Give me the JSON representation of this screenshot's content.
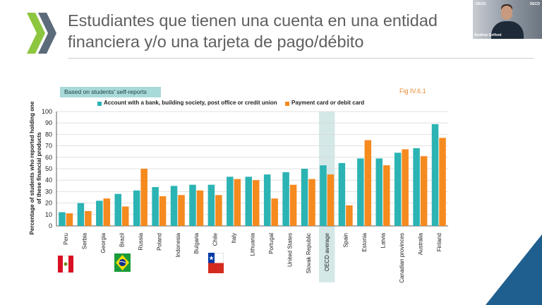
{
  "slide": {
    "title": "Estudiantes que tienen una cuenta en una entidad financiera y/o una tarjeta de pago/débito",
    "badge": "Based on students' self-reports",
    "figure_ref": "Fig IV.6.1",
    "presenter_name": "Andrea Grifoni",
    "cam_logo_left": "OECD",
    "cam_logo_right": "OECD",
    "accent_color": "#8dc63f",
    "corner_color": "#1f5f8f"
  },
  "flags": [
    {
      "country": "Peru",
      "icon": "peru-flag-icon"
    },
    {
      "country": "Brazil",
      "icon": "brazil-flag-icon"
    },
    {
      "country": "Chile",
      "icon": "chile-flag-icon"
    }
  ],
  "chart_data": {
    "type": "bar",
    "ylabel": "Percentage of students who reported holding one of these financial products",
    "ylim": [
      0,
      100
    ],
    "yticks": [
      0,
      10,
      20,
      30,
      40,
      50,
      60,
      70,
      80,
      90,
      100
    ],
    "grid": true,
    "legend_position": "top",
    "highlight_category": "OECD average",
    "categories": [
      "Peru",
      "Serbia",
      "Georgia",
      "Brazil",
      "Russia",
      "Poland",
      "Indonesia",
      "Bulgaria",
      "Chile",
      "Italy",
      "Lithuania",
      "Portugal",
      "United States",
      "Slovak Republic",
      "OECD average",
      "Spain",
      "Estonia",
      "Latvia",
      "Canadian provinces",
      "Australia",
      "Finland"
    ],
    "series": [
      {
        "name": "Account with a bank, building society, post office or credit union",
        "color": "#2cb3b3",
        "values": [
          12,
          20,
          22,
          28,
          31,
          34,
          35,
          36,
          36,
          43,
          43,
          45,
          47,
          50,
          53,
          55,
          59,
          59,
          64,
          68,
          89
        ]
      },
      {
        "name": "Payment card or debit card",
        "color": "#f58a1f",
        "values": [
          11,
          13,
          24,
          17,
          50,
          26,
          27,
          31,
          27,
          41,
          40,
          24,
          36,
          41,
          45,
          18,
          75,
          53,
          67,
          61,
          77
        ]
      }
    ]
  }
}
